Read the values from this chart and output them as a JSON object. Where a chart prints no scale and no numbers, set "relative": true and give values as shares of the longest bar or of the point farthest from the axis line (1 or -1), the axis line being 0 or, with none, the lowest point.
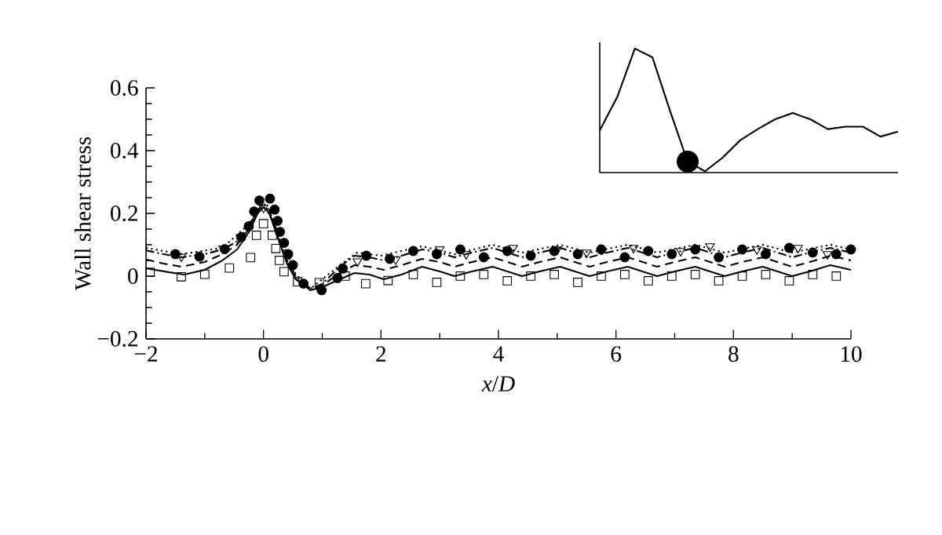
{
  "chart_data": [
    {
      "type": "line",
      "xlabel": "*x*/*D*",
      "ylabel": "Wall shear stress",
      "xlim": [
        -2,
        10
      ],
      "xticks": [
        {
          "value": -2,
          "label": "−2"
        },
        0,
        2,
        4,
        6,
        8,
        10
      ],
      "ylim": [
        -0.2,
        0.6
      ],
      "yticks": [
        {
          "value": -0.2,
          "label": "−0.2"
        },
        0,
        0.2,
        0.4,
        0.6
      ],
      "series": [
        {
          "line_style": "solid",
          "color": "#000000",
          "x": [
            -2,
            -1.6,
            -1.35,
            -1.0,
            -0.7,
            -0.45,
            -0.25,
            -0.1,
            0,
            0.1,
            0.25,
            0.4,
            0.55,
            0.8,
            1.0,
            1.3,
            1.55,
            1.8,
            2.05,
            2.35,
            2.7,
            3.0,
            3.25,
            3.55,
            3.9,
            4.15,
            4.4,
            4.7,
            5.05,
            5.3,
            5.55,
            5.85,
            6.2,
            6.45,
            6.7,
            7.0,
            7.35,
            7.6,
            7.85,
            8.15,
            8.5,
            8.75,
            9.0,
            9.3,
            9.65,
            10
          ],
          "values": [
            0.025,
            0.012,
            0.005,
            0.02,
            0.05,
            0.085,
            0.14,
            0.2,
            0.22,
            0.2,
            0.12,
            0.04,
            -0.01,
            -0.045,
            -0.035,
            -0.01,
            0.01,
            0.005,
            -0.01,
            0.005,
            0.03,
            0.015,
            0.0,
            0.015,
            0.03,
            0.015,
            0.0,
            0.015,
            0.03,
            0.015,
            0.0,
            0.015,
            0.03,
            0.015,
            0.0,
            0.015,
            0.03,
            0.015,
            0.0,
            0.015,
            0.03,
            0.015,
            0.0,
            0.015,
            0.035,
            0.02
          ]
        },
        {
          "line_style": "dashed",
          "color": "#000000",
          "x": [
            -2,
            -1.7,
            -1.4,
            -1.0,
            -0.7,
            -0.45,
            -0.25,
            -0.1,
            0,
            0.1,
            0.25,
            0.4,
            0.55,
            0.8,
            1.0,
            1.3,
            1.55,
            1.8,
            2.05,
            2.35,
            2.7,
            3.0,
            3.25,
            3.55,
            3.9,
            4.15,
            4.4,
            4.7,
            5.05,
            5.3,
            5.55,
            5.85,
            6.2,
            6.45,
            6.7,
            7.0,
            7.35,
            7.6,
            7.85,
            8.15,
            8.5,
            8.75,
            9.0,
            9.3,
            9.65,
            10
          ],
          "values": [
            0.053,
            0.04,
            0.03,
            0.045,
            0.07,
            0.1,
            0.15,
            0.2,
            0.22,
            0.2,
            0.12,
            0.04,
            -0.01,
            -0.04,
            -0.03,
            0.01,
            0.035,
            0.03,
            0.02,
            0.035,
            0.055,
            0.045,
            0.03,
            0.045,
            0.06,
            0.045,
            0.03,
            0.045,
            0.06,
            0.045,
            0.03,
            0.045,
            0.06,
            0.045,
            0.03,
            0.045,
            0.06,
            0.045,
            0.03,
            0.045,
            0.06,
            0.045,
            0.03,
            0.045,
            0.065,
            0.05
          ]
        },
        {
          "line_style": "dashdot",
          "color": "#000000",
          "x": [
            -2,
            -1.7,
            -1.4,
            -1.0,
            -0.7,
            -0.45,
            -0.25,
            -0.1,
            0,
            0.1,
            0.25,
            0.4,
            0.55,
            0.8,
            1.0,
            1.3,
            1.55,
            1.8,
            2.05,
            2.35,
            2.7,
            3.0,
            3.25,
            3.55,
            3.9,
            4.15,
            4.4,
            4.7,
            5.05,
            5.3,
            5.55,
            5.85,
            6.2,
            6.45,
            6.7,
            7.0,
            7.35,
            7.6,
            7.85,
            8.15,
            8.5,
            8.75,
            9.0,
            9.3,
            9.65,
            10
          ],
          "values": [
            0.082,
            0.07,
            0.06,
            0.07,
            0.085,
            0.11,
            0.16,
            0.21,
            0.23,
            0.21,
            0.13,
            0.05,
            0,
            -0.04,
            -0.025,
            0.03,
            0.065,
            0.06,
            0.05,
            0.065,
            0.085,
            0.075,
            0.06,
            0.075,
            0.09,
            0.075,
            0.06,
            0.075,
            0.09,
            0.075,
            0.06,
            0.075,
            0.09,
            0.075,
            0.06,
            0.075,
            0.09,
            0.075,
            0.06,
            0.075,
            0.09,
            0.075,
            0.06,
            0.075,
            0.09,
            0.075
          ]
        },
        {
          "line_style": "dotted",
          "color": "#000000",
          "x": [
            -2,
            -1.4,
            -0.7,
            -0.25,
            0,
            0.25,
            0.55,
            0.8,
            1.3,
            1.6,
            2.0,
            2.7,
            3.25,
            3.9,
            4.4,
            5.05,
            5.55,
            6.2,
            6.7,
            7.35,
            7.85,
            8.5,
            9.0,
            9.65,
            10
          ],
          "values": [
            0.09,
            0.07,
            0.09,
            0.165,
            0.235,
            0.14,
            0.005,
            -0.04,
            0.035,
            0.075,
            0.065,
            0.095,
            0.07,
            0.1,
            0.075,
            0.1,
            0.075,
            0.1,
            0.075,
            0.1,
            0.075,
            0.1,
            0.075,
            0.1,
            0.085
          ]
        },
        {
          "type": "scatter",
          "marker": "square",
          "color": "#000000",
          "x": [
            -1.93,
            -1.4,
            -1.0,
            -0.58,
            -0.22,
            -0.12,
            0,
            0.15,
            0.21,
            0.27,
            0.35,
            0.58,
            0.95,
            1.39,
            1.74,
            2.12,
            2.55,
            2.95,
            3.35,
            3.75,
            4.15,
            4.55,
            4.95,
            5.35,
            5.75,
            6.15,
            6.55,
            6.95,
            7.35,
            7.75,
            8.15,
            8.55,
            8.95,
            9.35,
            9.75
          ],
          "values": [
            0.012,
            -0.002,
            0.006,
            0.026,
            0.059,
            0.13,
            0.167,
            0.13,
            0.088,
            0.05,
            0.014,
            -0.018,
            -0.021,
            0,
            -0.024,
            -0.014,
            0.005,
            -0.02,
            0.0,
            0.005,
            -0.015,
            0.0,
            0.005,
            -0.02,
            0.0,
            0.005,
            -0.015,
            0.0,
            0.005,
            -0.015,
            0.0,
            0.005,
            -0.015,
            0.005,
            0.0
          ]
        },
        {
          "type": "scatter",
          "marker": "circle",
          "color": "#000000",
          "x": [
            -1.5,
            -1.09,
            -0.66,
            -0.38,
            -0.25,
            -0.16,
            -0.07,
            0.11,
            0.19,
            0.24,
            0.28,
            0.35,
            0.42,
            0.5,
            0.68,
            0.99,
            1.26,
            1.35,
            1.75,
            2.15,
            2.55,
            2.95,
            3.35,
            3.75,
            4.15,
            4.55,
            4.95,
            5.35,
            5.75,
            6.15,
            6.55,
            6.95,
            7.35,
            7.75,
            8.15,
            8.55,
            8.95,
            9.35,
            9.75,
            10
          ],
          "values": [
            0.07,
            0.062,
            0.086,
            0.124,
            0.159,
            0.206,
            0.241,
            0.247,
            0.212,
            0.176,
            0.141,
            0.106,
            0.07,
            0.035,
            -0.024,
            -0.045,
            -0.006,
            0.024,
            0.065,
            0.055,
            0.08,
            0.07,
            0.085,
            0.06,
            0.08,
            0.065,
            0.08,
            0.07,
            0.085,
            0.06,
            0.08,
            0.07,
            0.085,
            0.06,
            0.085,
            0.07,
            0.09,
            0.075,
            0.07,
            0.085
          ]
        },
        {
          "type": "scatter",
          "marker": "triangle",
          "color": "#000000",
          "x": [
            -1.4,
            -0.69,
            0,
            1.6,
            2.25,
            3.0,
            3.45,
            4.25,
            5.0,
            5.5,
            6.3,
            7.1,
            7.6,
            8.4,
            9.1,
            9.6
          ],
          "values": [
            0.062,
            0.088,
            0.218,
            0.047,
            0.053,
            0.085,
            0.07,
            0.09,
            0.085,
            0.075,
            0.09,
            0.08,
            0.095,
            0.085,
            0.09,
            0.07
          ]
        }
      ]
    },
    {
      "type": "line",
      "relative": true,
      "categories": [
        null,
        null,
        null,
        null,
        null,
        null,
        null,
        null,
        null,
        null,
        null,
        null,
        null,
        null,
        null,
        null,
        null,
        null
      ],
      "series": [
        {
          "color": "#000000",
          "values": [
            0.34,
            0.61,
            1.0,
            0.93,
            0.5,
            0.09,
            0.01,
            0.12,
            0.26,
            0.35,
            0.43,
            0.48,
            0.43,
            0.35,
            0.37,
            0.37,
            0.29,
            0.33
          ]
        }
      ]
    }
  ]
}
